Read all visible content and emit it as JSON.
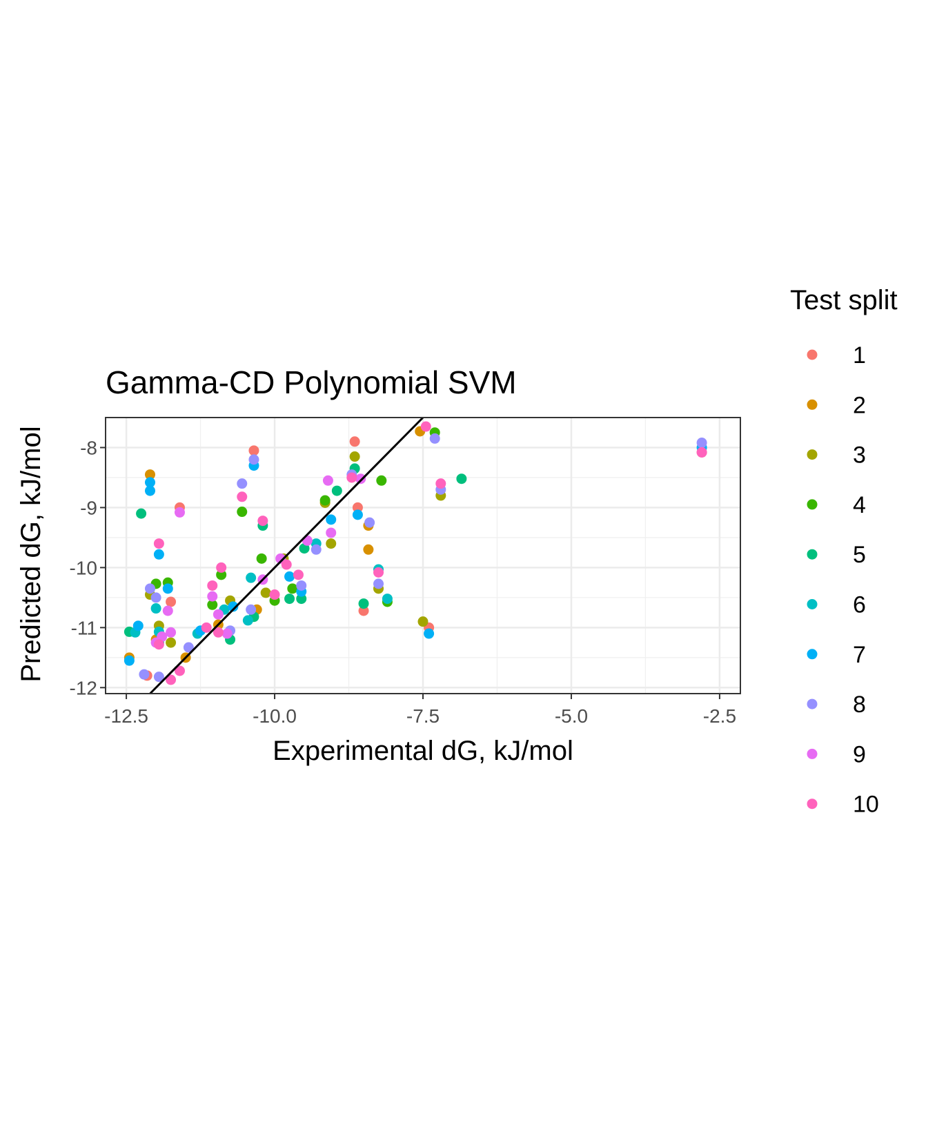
{
  "chart_data": {
    "type": "scatter",
    "title": "Gamma-CD Polynomial SVM",
    "xlabel": "Experimental dG, kJ/mol",
    "ylabel": "Predicted dG, kJ/mol",
    "xlim": [
      -12.85,
      -2.15
    ],
    "ylim": [
      -12.1,
      -7.5
    ],
    "x_ticks": [
      -12.5,
      -10.0,
      -7.5,
      -5.0,
      -2.5
    ],
    "x_tick_labels": [
      "-12.5",
      "-10.0",
      "-7.5",
      "-5.0",
      "-2.5"
    ],
    "y_ticks": [
      -12,
      -11,
      -10,
      -9,
      -8
    ],
    "y_tick_labels": [
      "-12",
      "-11",
      "-10",
      "-9",
      "-8"
    ],
    "grid": true,
    "legend": {
      "title": "Test split",
      "position": "right"
    },
    "reference_line": {
      "type": "identity",
      "color": "#000000"
    },
    "series": [
      {
        "name": "1",
        "color": "#F8766D",
        "points": [
          [
            -11.6,
            -9.0
          ],
          [
            -10.35,
            -8.05
          ],
          [
            -8.65,
            -7.9
          ],
          [
            -8.6,
            -9.0
          ],
          [
            -7.4,
            -11.0
          ],
          [
            -2.8,
            -8.08
          ],
          [
            -11.75,
            -10.57
          ],
          [
            -8.5,
            -10.72
          ],
          [
            -12.15,
            -11.8
          ]
        ]
      },
      {
        "name": "2",
        "color": "#D89000",
        "points": [
          [
            -12.1,
            -8.45
          ],
          [
            -7.55,
            -7.73
          ],
          [
            -8.42,
            -9.7
          ],
          [
            -8.42,
            -9.3
          ],
          [
            -11.5,
            -11.5
          ],
          [
            -12.45,
            -11.5
          ],
          [
            -10.95,
            -10.95
          ],
          [
            -10.3,
            -10.7
          ],
          [
            -12.0,
            -11.2
          ]
        ]
      },
      {
        "name": "3",
        "color": "#A3A500",
        "points": [
          [
            -8.65,
            -8.15
          ],
          [
            -7.2,
            -8.8
          ],
          [
            -7.5,
            -10.9
          ],
          [
            -9.05,
            -9.6
          ],
          [
            -8.25,
            -10.35
          ],
          [
            -10.15,
            -10.42
          ],
          [
            -10.75,
            -10.55
          ],
          [
            -12.1,
            -10.45
          ],
          [
            -11.95,
            -10.97
          ],
          [
            -11.75,
            -11.25
          ],
          [
            -9.15,
            -8.92
          ],
          [
            -9.85,
            -9.85
          ]
        ]
      },
      {
        "name": "4",
        "color": "#39B600",
        "points": [
          [
            -8.2,
            -8.55
          ],
          [
            -7.3,
            -7.75
          ],
          [
            -10.55,
            -9.07
          ],
          [
            -11.8,
            -10.25
          ],
          [
            -12.0,
            -10.27
          ],
          [
            -8.1,
            -10.57
          ],
          [
            -10.0,
            -10.55
          ],
          [
            -11.05,
            -10.62
          ],
          [
            -10.9,
            -10.12
          ],
          [
            -10.22,
            -9.85
          ],
          [
            -9.7,
            -10.35
          ],
          [
            -9.15,
            -8.88
          ]
        ]
      },
      {
        "name": "5",
        "color": "#00BF7D",
        "points": [
          [
            -12.25,
            -9.1
          ],
          [
            -6.85,
            -8.52
          ],
          [
            -8.5,
            -10.6
          ],
          [
            -9.55,
            -10.52
          ],
          [
            -12.45,
            -11.07
          ],
          [
            -11.95,
            -11.25
          ],
          [
            -10.75,
            -11.2
          ],
          [
            -8.95,
            -8.72
          ],
          [
            -8.65,
            -8.35
          ],
          [
            -9.75,
            -10.52
          ],
          [
            -9.5,
            -9.68
          ],
          [
            -10.35,
            -10.82
          ],
          [
            -10.2,
            -9.3
          ]
        ]
      },
      {
        "name": "6",
        "color": "#00BFC4",
        "points": [
          [
            -12.35,
            -11.08
          ],
          [
            -11.95,
            -11.07
          ],
          [
            -8.25,
            -10.03
          ],
          [
            -8.1,
            -10.52
          ],
          [
            -10.4,
            -10.17
          ],
          [
            -9.3,
            -9.6
          ],
          [
            -12.0,
            -10.68
          ],
          [
            -10.45,
            -10.88
          ],
          [
            -11.3,
            -11.1
          ],
          [
            -10.85,
            -10.7
          ]
        ]
      },
      {
        "name": "7",
        "color": "#00B0F6",
        "points": [
          [
            -12.1,
            -8.58
          ],
          [
            -12.1,
            -8.72
          ],
          [
            -10.35,
            -8.3
          ],
          [
            -11.95,
            -9.78
          ],
          [
            -11.8,
            -10.35
          ],
          [
            -12.3,
            -10.97
          ],
          [
            -12.45,
            -11.55
          ],
          [
            -8.6,
            -9.12
          ],
          [
            -9.05,
            -9.2
          ],
          [
            -7.4,
            -11.1
          ],
          [
            -9.75,
            -10.15
          ],
          [
            -10.7,
            -10.65
          ],
          [
            -2.8,
            -8.0
          ],
          [
            -11.25,
            -11.05
          ],
          [
            -9.55,
            -10.4
          ]
        ]
      },
      {
        "name": "8",
        "color": "#9590FF",
        "points": [
          [
            -10.55,
            -8.6
          ],
          [
            -10.35,
            -8.2
          ],
          [
            -7.3,
            -7.85
          ],
          [
            -7.2,
            -8.7
          ],
          [
            -8.7,
            -8.45
          ],
          [
            -8.4,
            -9.25
          ],
          [
            -9.3,
            -9.7
          ],
          [
            -12.1,
            -10.35
          ],
          [
            -12.0,
            -10.5
          ],
          [
            -12.2,
            -11.78
          ],
          [
            -11.95,
            -11.82
          ],
          [
            -10.75,
            -11.05
          ],
          [
            -8.25,
            -10.27
          ],
          [
            -2.8,
            -7.92
          ],
          [
            -11.45,
            -11.33
          ],
          [
            -9.55,
            -10.3
          ],
          [
            -10.4,
            -10.7
          ]
        ]
      },
      {
        "name": "9",
        "color": "#E76BF3",
        "points": [
          [
            -9.1,
            -8.55
          ],
          [
            -9.05,
            -9.42
          ],
          [
            -11.8,
            -10.72
          ],
          [
            -11.75,
            -11.08
          ],
          [
            -11.6,
            -9.08
          ],
          [
            -11.05,
            -10.48
          ],
          [
            -10.95,
            -10.78
          ],
          [
            -9.9,
            -9.85
          ],
          [
            -10.2,
            -10.2
          ],
          [
            -9.45,
            -9.55
          ],
          [
            -12.0,
            -11.25
          ],
          [
            -11.9,
            -11.15
          ],
          [
            -8.55,
            -8.52
          ],
          [
            -10.8,
            -11.1
          ]
        ]
      },
      {
        "name": "10",
        "color": "#FF62BC",
        "points": [
          [
            -7.45,
            -7.65
          ],
          [
            -2.8,
            -8.08
          ],
          [
            -7.2,
            -8.6
          ],
          [
            -10.55,
            -8.82
          ],
          [
            -10.2,
            -9.22
          ],
          [
            -11.95,
            -9.6
          ],
          [
            -10.9,
            -10.0
          ],
          [
            -11.05,
            -10.3
          ],
          [
            -9.6,
            -10.12
          ],
          [
            -11.75,
            -11.87
          ],
          [
            -11.6,
            -11.72
          ],
          [
            -11.15,
            -11.0
          ],
          [
            -10.0,
            -10.45
          ],
          [
            -8.25,
            -10.08
          ],
          [
            -9.8,
            -9.95
          ],
          [
            -8.7,
            -8.5
          ],
          [
            -11.95,
            -11.28
          ],
          [
            -10.95,
            -11.08
          ]
        ]
      }
    ]
  }
}
